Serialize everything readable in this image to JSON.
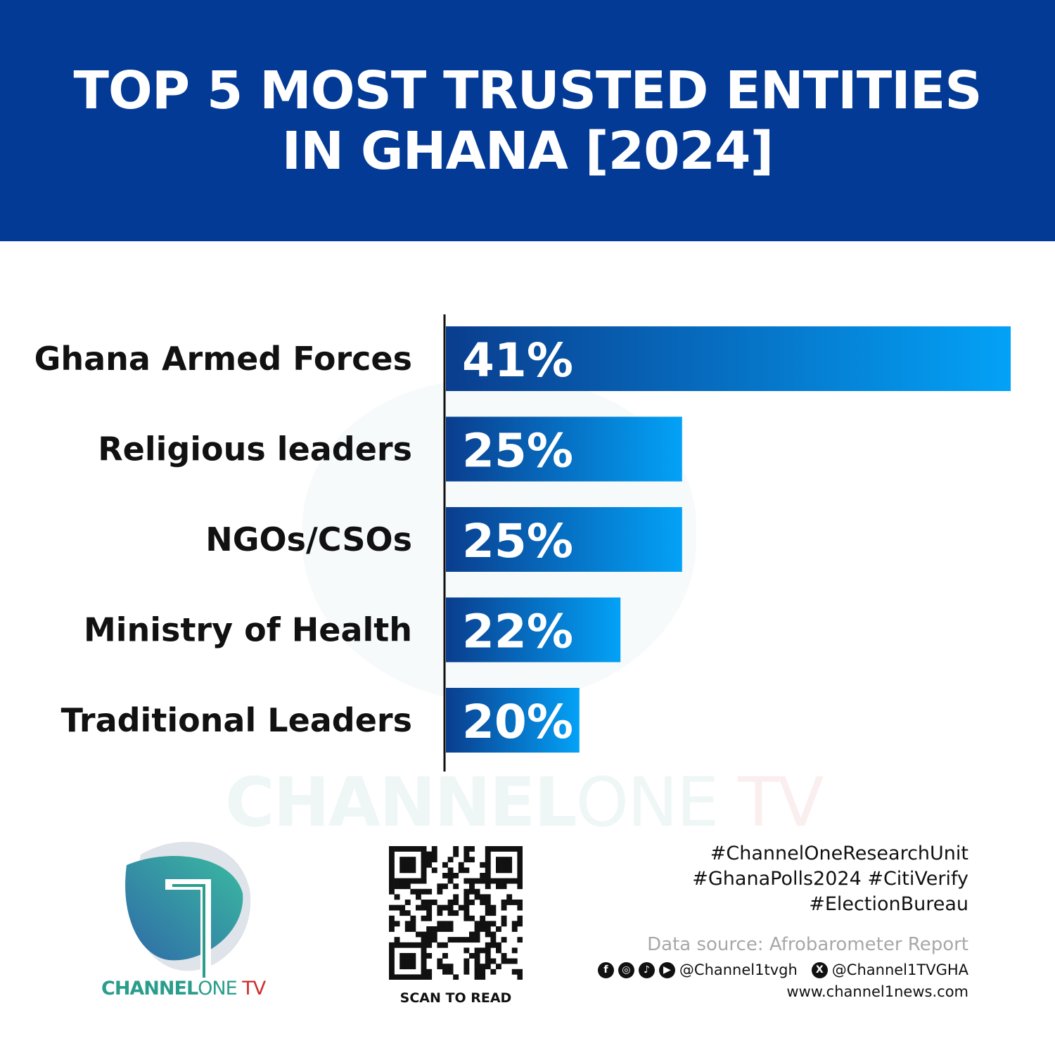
{
  "header": {
    "title_line1": "TOP 5 MOST TRUSTED ENTITIES",
    "title_line2": "IN GHANA [2024]"
  },
  "colors": {
    "header_bg": "#033a96",
    "bar_start": "#0a3d8e",
    "bar_end": "#03a2f7",
    "brand_teal": "#2a9d8c",
    "brand_red": "#d02b2b"
  },
  "chart_data": {
    "type": "bar",
    "orientation": "horizontal",
    "title": "TOP 5 MOST TRUSTED ENTITIES IN GHANA [2024]",
    "categories": [
      "Ghana Armed Forces",
      "Religious leaders",
      "NGOs/CSOs",
      "Ministry of Health",
      "Traditional Leaders"
    ],
    "values": [
      41,
      25,
      25,
      22,
      20
    ],
    "data_labels": [
      "41%",
      "25%",
      "25%",
      "22%",
      "20%"
    ],
    "unit": "%",
    "xlim": [
      13.5,
      41
    ],
    "grid": false
  },
  "watermark": {
    "part1": "CHANNEL",
    "part2": "ONE",
    "part3": " TV"
  },
  "logo": {
    "part1": "CHANNEL",
    "part2": "ONE",
    "part3": " TV"
  },
  "qr": {
    "label": "SCAN TO READ"
  },
  "footer": {
    "tags": [
      "#ChannelOneResearchUnit",
      "#GhanaPolls2024 #CitiVerify",
      "#ElectionBureau"
    ],
    "source": "Data source: Afrobarometer Report",
    "social_icons": [
      "facebook-icon",
      "instagram-icon",
      "tiktok-icon",
      "youtube-icon"
    ],
    "handle1": "@Channel1tvgh",
    "x_icon": "x-icon",
    "handle2": "@Channel1TVGHA",
    "website": "www.channel1news.com"
  }
}
